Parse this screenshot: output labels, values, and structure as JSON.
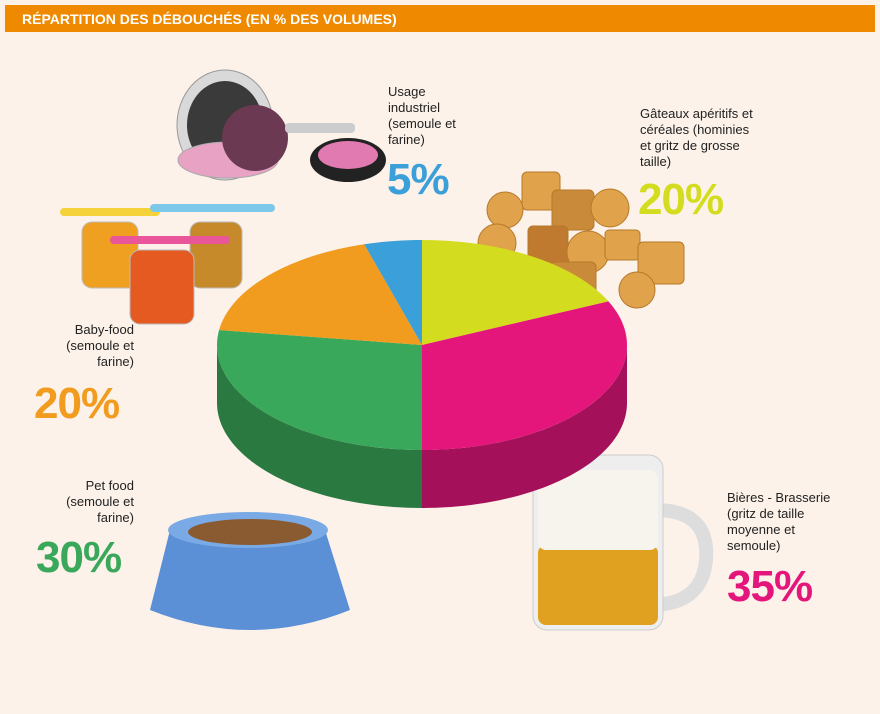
{
  "chart_data": {
    "type": "pie3d",
    "title": "RÉPARTITION DES DÉBOUCHÉS (EN % DES VOLUMES)",
    "categories": [
      "Gâteaux apéritifs et céréales (hominies et gritz de grosse taille)",
      "Bières - Brasserie (gritz de taille moyenne et semoule)",
      "Pet food (semoule et farine)",
      "Baby-food (semoule et farine)",
      "Usage industriel (semoule et farine)"
    ],
    "values": [
      20,
      35,
      30,
      20,
      5
    ],
    "value_labels": [
      "20%",
      "35%",
      "30%",
      "20%",
      "5%"
    ],
    "colors": [
      "#d3dc1f",
      "#e4167c",
      "#3aa85a",
      "#f19b1f",
      "#3b9fd9"
    ]
  }
}
